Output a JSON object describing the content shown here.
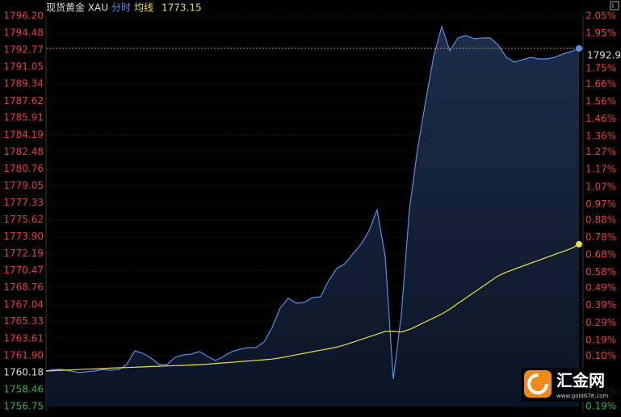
{
  "chart_data": {
    "type": "line",
    "title": "现货黄金 XAU",
    "categories": [
      null,
      null,
      null,
      null,
      null,
      null,
      null,
      null,
      null,
      null,
      null,
      null,
      null,
      null,
      null,
      null,
      null,
      null,
      null,
      null,
      null,
      null,
      null,
      null,
      null,
      null,
      null,
      null,
      null,
      null,
      null,
      null,
      null,
      null,
      null,
      null,
      null,
      null,
      null,
      null,
      null,
      null,
      null,
      null,
      null,
      null,
      null,
      null,
      null,
      null,
      null,
      null,
      null,
      null,
      null,
      null,
      null,
      null,
      null,
      null,
      null,
      null,
      null,
      null,
      null,
      null,
      null
    ],
    "series": [
      {
        "name": "分时",
        "color": "#5a8ee8",
        "values": [
          1760.34,
          1760.5,
          1760.5,
          1760.34,
          1760.18,
          1760.26,
          1760.34,
          1760.5,
          1760.42,
          1760.5,
          1760.99,
          1762.38,
          1762.13,
          1761.64,
          1760.99,
          1760.99,
          1761.73,
          1761.97,
          1762.05,
          1762.3,
          1761.81,
          1761.4,
          1761.81,
          1762.3,
          1762.54,
          1762.7,
          1762.7,
          1763.27,
          1764.74,
          1766.7,
          1767.68,
          1767.19,
          1767.27,
          1767.76,
          1767.84,
          1769.47,
          1770.69,
          1771.18,
          1772.16,
          1773.14,
          1774.52,
          1776.64,
          1771.91,
          1759.53,
          1766.05,
          1776.64,
          1782.75,
          1787.56,
          1792.13,
          1795.14,
          1792.7,
          1794.0,
          1794.24,
          1793.92,
          1794.0,
          1794.0,
          1793.27,
          1792.04,
          1791.55,
          1791.8,
          1792.04,
          1791.88,
          1791.88,
          1792.04,
          1792.37,
          1792.61,
          1792.94
        ]
      },
      {
        "name": "均线",
        "color": "#e8e04a",
        "values": [
          1760.34,
          1760.38,
          1760.41,
          1760.45,
          1760.48,
          1760.52,
          1760.55,
          1760.59,
          1760.63,
          1760.66,
          1760.69,
          1760.72,
          1760.75,
          1760.79,
          1760.82,
          1760.85,
          1760.88,
          1760.91,
          1760.95,
          1760.98,
          1761.03,
          1761.1,
          1761.16,
          1761.22,
          1761.29,
          1761.35,
          1761.41,
          1761.48,
          1761.54,
          1761.67,
          1761.82,
          1761.98,
          1762.13,
          1762.29,
          1762.44,
          1762.59,
          1762.75,
          1762.98,
          1763.25,
          1763.52,
          1763.79,
          1764.06,
          1764.34,
          1764.36,
          1764.28,
          1764.53,
          1764.92,
          1765.31,
          1765.7,
          1766.09,
          1766.6,
          1767.16,
          1767.72,
          1768.28,
          1768.84,
          1769.4,
          1769.96,
          1770.33,
          1770.63,
          1770.93,
          1771.23,
          1771.52,
          1771.82,
          1772.12,
          1772.41,
          1772.71,
          1773.15
        ]
      }
    ],
    "ylim": [
      1756.75,
      1796.2
    ],
    "yticks": [
      {
        "value": 1796.2,
        "label": "1796.20"
      },
      1794.48,
      1792.77,
      1791.05,
      1789.34,
      1787.62,
      1785.91,
      1784.19,
      1782.48,
      1780.76,
      1779.05,
      1777.33,
      1775.62,
      {
        "value": 1773.9,
        "label": "1773.90"
      },
      1772.19,
      1770.47,
      1768.76,
      1767.04,
      1765.33,
      1763.61,
      {
        "value": 1761.9,
        "label": "1761.90"
      },
      1760.18,
      1758.46,
      1756.75
    ],
    "y2lim": [
      -0.19,
      2.05
    ],
    "y2ticks": [
      {
        "value": 2.05,
        "label": "2.05%"
      },
      {
        "value": 1.95,
        "label": "1.95%"
      },
      {
        "value": 1.85,
        "label": "1.85%"
      },
      {
        "value": 1.75,
        "label": "1.75%"
      },
      {
        "value": 1.66,
        "label": "1.66%"
      },
      {
        "value": 1.56,
        "label": "1.56%"
      },
      {
        "value": 1.46,
        "label": "1.46%"
      },
      {
        "value": 1.36,
        "label": "1.36%"
      },
      {
        "value": 1.27,
        "label": "1.27%"
      },
      {
        "value": 1.17,
        "label": "1.17%"
      },
      {
        "value": 1.07,
        "label": "1.07%"
      },
      {
        "value": 0.97,
        "label": "0.97%"
      },
      {
        "value": 0.88,
        "label": "0.88%"
      },
      {
        "value": 0.78,
        "label": "0.78%"
      },
      {
        "value": 0.68,
        "label": "0.68%"
      },
      {
        "value": 0.58,
        "label": "0.58%"
      },
      {
        "value": 0.49,
        "label": "0.49%"
      },
      {
        "value": 0.39,
        "label": "0.39%"
      },
      {
        "value": 0.29,
        "label": "0.29%"
      },
      {
        "value": 0.19,
        "label": "0.19%"
      },
      {
        "value": 0.1,
        "label": "0.10%"
      },
      {
        "value": -0.1,
        "label": "0.10%"
      },
      {
        "value": -0.19,
        "label": "0.19%"
      }
    ],
    "grid": true
  },
  "logo": {
    "name": "汇金网",
    "url": "www.gold678.com"
  }
}
